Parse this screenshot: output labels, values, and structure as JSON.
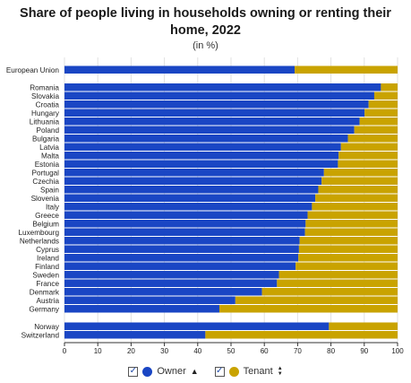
{
  "chart_data": {
    "type": "bar",
    "orientation": "horizontal",
    "stacked": true,
    "title": "Share of people living in households owning or renting their home, 2022",
    "subtitle": "(in %)",
    "xlim": [
      0,
      100
    ],
    "xticks": [
      0,
      10,
      20,
      30,
      40,
      50,
      60,
      70,
      80,
      90,
      100
    ],
    "grid": true,
    "legend_position": "bottom",
    "groups": [
      {
        "categories": [
          "European Union"
        ],
        "owner": [
          69.1
        ],
        "tenant": [
          30.9
        ]
      },
      {
        "categories": [
          "Romania",
          "Slovakia",
          "Croatia",
          "Hungary",
          "Lithuania",
          "Poland",
          "Bulgaria",
          "Latvia",
          "Malta",
          "Estonia",
          "Portugal",
          "Czechia",
          "Spain",
          "Slovenia",
          "Italy",
          "Greece",
          "Belgium",
          "Luxembourg",
          "Netherlands",
          "Cyprus",
          "Ireland",
          "Finland",
          "Sweden",
          "France",
          "Denmark",
          "Austria",
          "Germany"
        ],
        "owner": [
          95.0,
          93.0,
          91.3,
          90.1,
          88.6,
          87.0,
          85.1,
          83.0,
          82.3,
          82.1,
          77.9,
          77.2,
          76.2,
          75.3,
          74.3,
          73.0,
          72.4,
          72.2,
          70.6,
          70.4,
          70.2,
          69.4,
          64.4,
          63.8,
          59.3,
          51.3,
          46.5
        ],
        "tenant": [
          5.0,
          7.0,
          8.7,
          9.9,
          11.4,
          13.0,
          14.9,
          17.0,
          17.7,
          17.9,
          22.1,
          22.8,
          23.8,
          24.7,
          25.7,
          27.0,
          27.6,
          27.8,
          29.4,
          29.6,
          29.8,
          30.6,
          35.6,
          36.2,
          40.7,
          48.7,
          53.5
        ]
      },
      {
        "categories": [
          "Norway",
          "Switzerland"
        ],
        "owner": [
          79.4,
          42.3
        ],
        "tenant": [
          20.6,
          57.7
        ]
      }
    ],
    "series": [
      {
        "name": "Owner",
        "color": "#1a46c4"
      },
      {
        "name": "Tenant",
        "color": "#c9a300"
      }
    ]
  },
  "legend": {
    "owner_label": "Owner",
    "tenant_label": "Tenant",
    "owner_color": "#1a46c4",
    "tenant_color": "#c9a300",
    "owner_sort_icon": "caret-up-icon",
    "tenant_sort_icon": "sort-both-icon"
  }
}
